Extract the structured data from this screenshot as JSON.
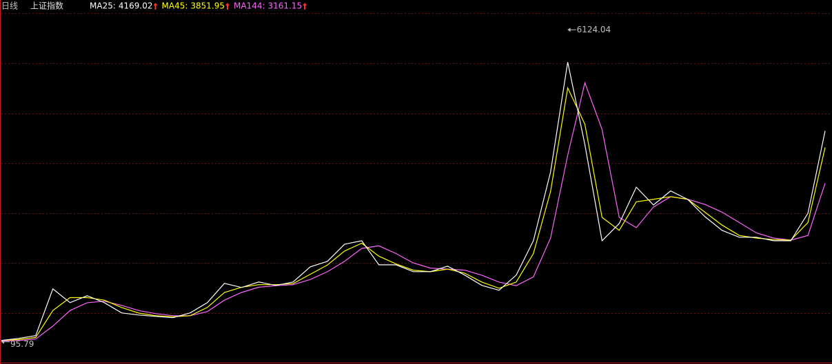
{
  "chart_data": {
    "type": "line",
    "period": "日线",
    "title": "上证指数",
    "ylim": [
      -280,
      6540
    ],
    "series": [
      {
        "name": "MA25:",
        "color": "#ffffff",
        "values": [
          123,
          162,
          216,
          1119,
          853,
          986,
          853,
          654,
          614,
          587,
          561,
          654,
          853,
          1225,
          1145,
          1251,
          1185,
          1251,
          1544,
          1650,
          1982,
          2048,
          1583,
          1583,
          1451,
          1451,
          1557,
          1384,
          1185,
          1092,
          1384,
          2048,
          3376,
          5501,
          3907,
          2048,
          2380,
          3084,
          2739,
          3011,
          2845,
          2513,
          2248,
          2115,
          2115,
          2048,
          2048,
          2579,
          4169.02
        ]
      },
      {
        "name": "MA45:",
        "color": "#ffff00",
        "values": [
          123,
          140,
          180,
          700,
          950,
          950,
          900,
          760,
          650,
          600,
          580,
          600,
          760,
          1050,
          1150,
          1200,
          1200,
          1220,
          1400,
          1580,
          1850,
          2000,
          1750,
          1600,
          1480,
          1450,
          1500,
          1420,
          1250,
          1130,
          1250,
          1800,
          3000,
          5000,
          4300,
          2500,
          2250,
          2800,
          2850,
          2900,
          2850,
          2600,
          2350,
          2150,
          2100,
          2070,
          2060,
          2400,
          3851.95
        ]
      },
      {
        "name": "MA144:",
        "color": "#ff66ff",
        "values": [
          110,
          120,
          150,
          400,
          700,
          850,
          880,
          800,
          700,
          640,
          600,
          600,
          680,
          900,
          1050,
          1150,
          1180,
          1200,
          1300,
          1450,
          1650,
          1900,
          1950,
          1800,
          1620,
          1520,
          1500,
          1480,
          1380,
          1250,
          1180,
          1350,
          2100,
          3700,
          5100,
          4200,
          2500,
          2300,
          2700,
          2900,
          2850,
          2750,
          2600,
          2400,
          2200,
          2100,
          2060,
          2150,
          3161.15
        ]
      }
    ],
    "annotations": [
      {
        "value": 6124.04,
        "x": 33
      },
      {
        "value": 95.79,
        "x": 0
      }
    ]
  }
}
